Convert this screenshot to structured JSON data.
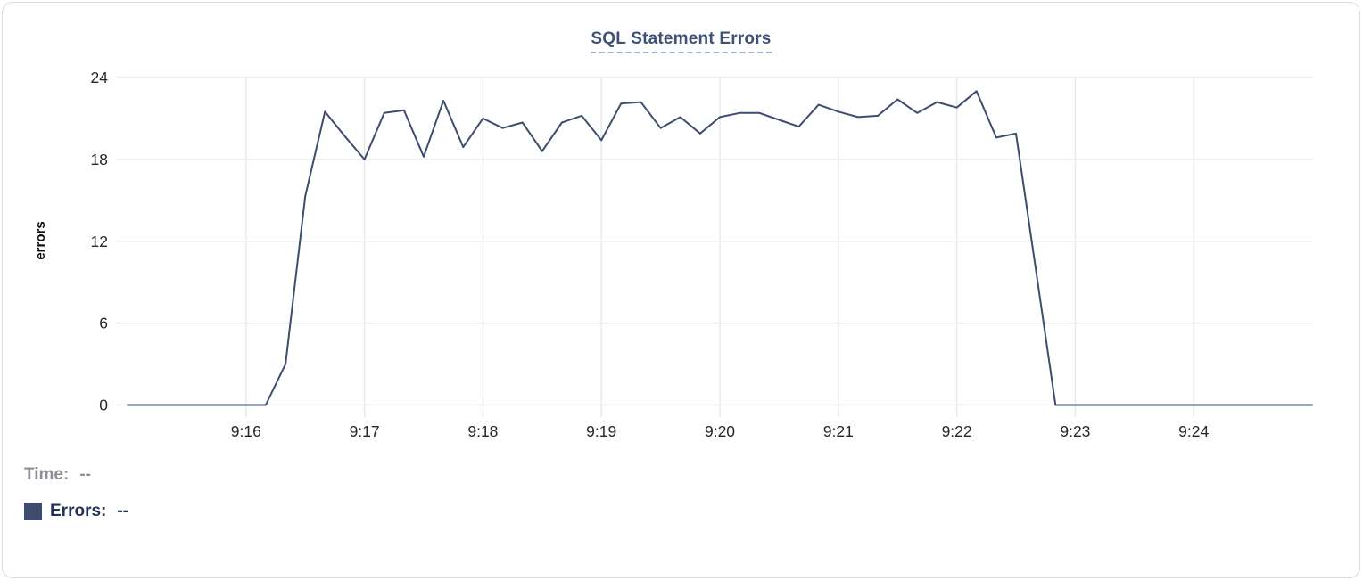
{
  "chart_data": {
    "type": "line",
    "title": "SQL Statement Errors",
    "xlabel": "",
    "ylabel": "errors",
    "ylim": [
      0,
      24
    ],
    "y_ticks": [
      0,
      6,
      12,
      18,
      24
    ],
    "x_ticks": [
      "9:16",
      "9:17",
      "9:18",
      "9:19",
      "9:20",
      "9:21",
      "9:22",
      "9:23",
      "9:24"
    ],
    "x_start": "9:15:00",
    "x_end": "9:25:00",
    "sample_interval_seconds": 10,
    "grid": true,
    "legend_position": "bottom-left",
    "line_color": "#3e4d6d",
    "grid_color": "#e9e9e9",
    "tick_label_color": "#262626",
    "series": [
      {
        "name": "Errors",
        "times": [
          "9:15:00",
          "9:15:10",
          "9:15:20",
          "9:15:30",
          "9:15:40",
          "9:15:50",
          "9:16:00",
          "9:16:10",
          "9:16:20",
          "9:16:30",
          "9:16:40",
          "9:16:50",
          "9:17:00",
          "9:17:10",
          "9:17:20",
          "9:17:30",
          "9:17:40",
          "9:17:50",
          "9:18:00",
          "9:18:10",
          "9:18:20",
          "9:18:30",
          "9:18:40",
          "9:18:50",
          "9:19:00",
          "9:19:10",
          "9:19:20",
          "9:19:30",
          "9:19:40",
          "9:19:50",
          "9:20:00",
          "9:20:10",
          "9:20:20",
          "9:20:30",
          "9:20:40",
          "9:20:50",
          "9:21:00",
          "9:21:10",
          "9:21:20",
          "9:21:30",
          "9:21:40",
          "9:21:50",
          "9:22:00",
          "9:22:10",
          "9:22:20",
          "9:22:30",
          "9:22:40",
          "9:22:50",
          "9:23:00",
          "9:23:10",
          "9:23:20",
          "9:23:30",
          "9:23:40",
          "9:23:50",
          "9:24:00",
          "9:24:10",
          "9:24:20",
          "9:24:30",
          "9:24:40",
          "9:24:50",
          "9:25:00"
        ],
        "values": [
          0,
          0,
          0,
          0,
          0,
          0,
          0,
          0,
          3,
          15.3,
          21.5,
          19.7,
          18,
          21.4,
          21.6,
          18.2,
          22.3,
          18.9,
          21,
          20.3,
          20.7,
          18.6,
          20.7,
          21.2,
          19.4,
          22.1,
          22.2,
          20.3,
          21.1,
          19.9,
          21.1,
          21.4,
          21.4,
          20.9,
          20.4,
          22,
          21.5,
          21.1,
          21.2,
          22.4,
          21.4,
          22.2,
          21.8,
          23,
          19.6,
          19.9,
          10,
          0,
          0,
          0,
          0,
          0,
          0,
          0,
          0,
          0,
          0,
          0,
          0,
          0,
          0
        ]
      }
    ]
  },
  "footer": {
    "time_label": "Time:",
    "time_value": "--",
    "errors_label": "Errors:",
    "errors_value": "--"
  }
}
